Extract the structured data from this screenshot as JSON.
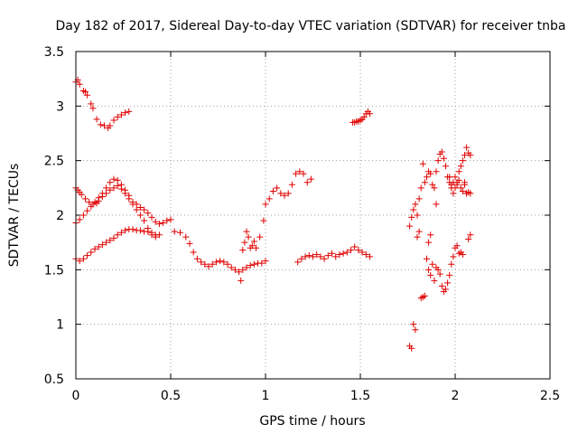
{
  "chart_data": {
    "type": "scatter",
    "title": "Day 182 of 2017, Sidereal Day-to-day VTEC variation (SDTVAR) for receiver tnba",
    "xlabel": "GPS time / hours",
    "ylabel": "SDTVAR / TECUs",
    "xlim": [
      0,
      2.5
    ],
    "ylim": [
      0.5,
      3.5
    ],
    "xticks": [
      "0",
      "0.5",
      "1",
      "1.5",
      "2",
      "2.5"
    ],
    "yticks": [
      "0.5",
      "1",
      "1.5",
      "2",
      "2.5",
      "3",
      "3.5"
    ],
    "grid": true,
    "marker": "+",
    "series_color": "#e00000",
    "segments": [
      {
        "x": [
          0.0,
          0.01,
          0.02,
          0.04,
          0.05,
          0.06,
          0.08,
          0.09,
          0.11,
          0.13,
          0.15,
          0.17,
          0.18,
          0.2,
          0.22,
          0.24,
          0.26,
          0.28
        ],
        "y": [
          3.22,
          3.24,
          3.2,
          3.14,
          3.13,
          3.1,
          3.02,
          2.98,
          2.88,
          2.83,
          2.82,
          2.8,
          2.82,
          2.87,
          2.9,
          2.92,
          2.94,
          2.95
        ]
      },
      {
        "x": [
          0.0,
          0.01,
          0.02,
          0.03,
          0.05,
          0.07,
          0.09,
          0.11,
          0.12,
          0.14,
          0.16,
          0.18,
          0.2,
          0.22,
          0.24,
          0.26,
          0.28,
          0.3,
          0.32,
          0.34,
          0.36,
          0.38,
          0.4,
          0.42
        ],
        "y": [
          2.25,
          2.23,
          2.21,
          2.19,
          2.15,
          2.12,
          2.1,
          2.11,
          2.13,
          2.17,
          2.2,
          2.23,
          2.25,
          2.27,
          2.24,
          2.2,
          2.15,
          2.1,
          2.05,
          2.0,
          1.95,
          1.88,
          1.82,
          1.8
        ]
      },
      {
        "x": [
          0.0,
          0.02,
          0.04,
          0.06,
          0.08,
          0.1,
          0.12,
          0.14,
          0.16,
          0.18,
          0.2,
          0.22,
          0.24,
          0.26,
          0.28,
          0.3,
          0.32,
          0.34,
          0.36,
          0.38,
          0.4,
          0.42,
          0.44,
          0.46,
          0.48,
          0.5
        ],
        "y": [
          1.93,
          1.96,
          2.0,
          2.04,
          2.08,
          2.12,
          2.16,
          2.2,
          2.25,
          2.3,
          2.33,
          2.32,
          2.28,
          2.23,
          2.18,
          2.12,
          2.1,
          2.07,
          2.05,
          2.02,
          1.98,
          1.94,
          1.92,
          1.93,
          1.95,
          1.96
        ]
      },
      {
        "x": [
          0.0,
          0.02,
          0.04,
          0.06,
          0.08,
          0.1,
          0.12,
          0.14,
          0.16,
          0.18,
          0.2,
          0.22,
          0.24,
          0.26,
          0.28,
          0.3,
          0.32,
          0.34,
          0.36,
          0.38,
          0.4,
          0.42,
          0.44
        ],
        "y": [
          1.6,
          1.58,
          1.6,
          1.63,
          1.66,
          1.69,
          1.71,
          1.73,
          1.75,
          1.77,
          1.79,
          1.82,
          1.84,
          1.86,
          1.87,
          1.87,
          1.86,
          1.86,
          1.85,
          1.85,
          1.84,
          1.82,
          1.82
        ]
      },
      {
        "x": [
          0.52,
          0.55,
          0.58,
          0.6,
          0.62,
          0.64,
          0.66,
          0.68,
          0.7,
          0.72,
          0.74,
          0.76,
          0.78,
          0.8,
          0.82,
          0.84,
          0.86,
          0.88,
          0.9,
          0.92,
          0.94,
          0.96,
          0.98,
          1.0
        ],
        "y": [
          1.85,
          1.84,
          1.8,
          1.74,
          1.66,
          1.6,
          1.57,
          1.55,
          1.53,
          1.55,
          1.57,
          1.58,
          1.57,
          1.55,
          1.52,
          1.5,
          1.48,
          1.5,
          1.52,
          1.54,
          1.55,
          1.56,
          1.56,
          1.58
        ]
      },
      {
        "x": [
          0.87,
          0.88,
          0.89,
          0.9,
          0.91,
          0.92,
          0.93,
          0.94,
          0.95,
          0.97,
          0.99
        ],
        "y": [
          1.4,
          1.68,
          1.75,
          1.85,
          1.8,
          1.7,
          1.72,
          1.76,
          1.7,
          1.8,
          1.95
        ]
      },
      {
        "x": [
          1.0,
          1.02,
          1.04,
          1.06,
          1.08,
          1.1,
          1.12,
          1.14,
          1.16,
          1.18,
          1.2,
          1.22,
          1.24
        ],
        "y": [
          2.1,
          2.15,
          2.22,
          2.25,
          2.2,
          2.18,
          2.2,
          2.28,
          2.38,
          2.4,
          2.38,
          2.3,
          2.33
        ]
      },
      {
        "x": [
          1.17,
          1.19,
          1.21,
          1.23,
          1.25,
          1.27,
          1.29,
          1.31,
          1.33,
          1.35,
          1.37,
          1.39,
          1.41,
          1.43,
          1.45,
          1.47,
          1.49,
          1.51,
          1.53,
          1.55
        ],
        "y": [
          1.57,
          1.6,
          1.62,
          1.63,
          1.62,
          1.64,
          1.62,
          1.6,
          1.63,
          1.65,
          1.62,
          1.64,
          1.65,
          1.66,
          1.68,
          1.71,
          1.68,
          1.66,
          1.64,
          1.62
        ]
      },
      {
        "x": [
          1.46,
          1.47,
          1.48,
          1.49,
          1.5,
          1.51,
          1.52,
          1.53,
          1.54,
          1.55
        ],
        "y": [
          2.85,
          2.85,
          2.86,
          2.86,
          2.87,
          2.88,
          2.9,
          2.93,
          2.95,
          2.93
        ]
      },
      {
        "x": [
          1.76,
          1.77,
          1.78,
          1.79,
          1.8,
          1.81,
          1.82,
          1.83,
          1.84,
          1.85,
          1.86,
          1.87
        ],
        "y": [
          0.8,
          0.78,
          1.0,
          0.95,
          1.8,
          1.85,
          1.24,
          1.25,
          1.26,
          1.6,
          1.75,
          1.82
        ]
      },
      {
        "x": [
          1.76,
          1.77,
          1.78,
          1.79,
          1.8,
          1.81,
          1.82,
          1.83,
          1.84,
          1.85,
          1.86,
          1.87,
          1.88,
          1.89,
          1.9
        ],
        "y": [
          1.9,
          1.98,
          2.05,
          2.1,
          2.0,
          2.15,
          2.25,
          2.47,
          2.3,
          2.35,
          2.4,
          2.38,
          2.28,
          2.25,
          2.1
        ]
      },
      {
        "x": [
          1.86,
          1.87,
          1.88,
          1.89,
          1.9,
          1.91,
          1.92,
          1.93,
          1.94,
          1.95,
          1.96,
          1.97,
          1.98
        ],
        "y": [
          1.5,
          1.45,
          1.55,
          1.4,
          1.52,
          1.5,
          1.46,
          1.35,
          1.3,
          1.32,
          1.38,
          1.45,
          1.55
        ]
      },
      {
        "x": [
          1.9,
          1.91,
          1.92,
          1.93,
          1.94,
          1.95,
          1.96,
          1.97,
          1.98,
          1.99,
          2.0,
          2.01,
          2.02,
          2.03,
          2.04,
          2.05,
          2.06,
          2.07,
          2.08
        ],
        "y": [
          2.4,
          2.5,
          2.56,
          2.58,
          2.52,
          2.45,
          2.35,
          2.3,
          2.25,
          2.3,
          2.35,
          2.28,
          2.4,
          2.45,
          2.5,
          2.55,
          2.62,
          2.57,
          2.55
        ]
      },
      {
        "x": [
          1.99,
          2.0,
          2.01,
          2.02,
          2.03,
          2.04,
          2.05,
          2.06,
          2.07,
          2.08
        ],
        "y": [
          1.62,
          1.7,
          1.72,
          1.65,
          1.66,
          1.64,
          2.3,
          2.2,
          1.78,
          1.82
        ]
      },
      {
        "x": [
          1.97,
          1.98,
          1.99,
          2.0,
          2.01,
          2.02,
          2.03,
          2.04,
          2.05,
          2.06,
          2.07,
          2.08
        ],
        "y": [
          2.35,
          2.28,
          2.2,
          2.25,
          2.3,
          2.32,
          2.25,
          2.22,
          2.28,
          2.2,
          2.21,
          2.2
        ]
      }
    ]
  }
}
